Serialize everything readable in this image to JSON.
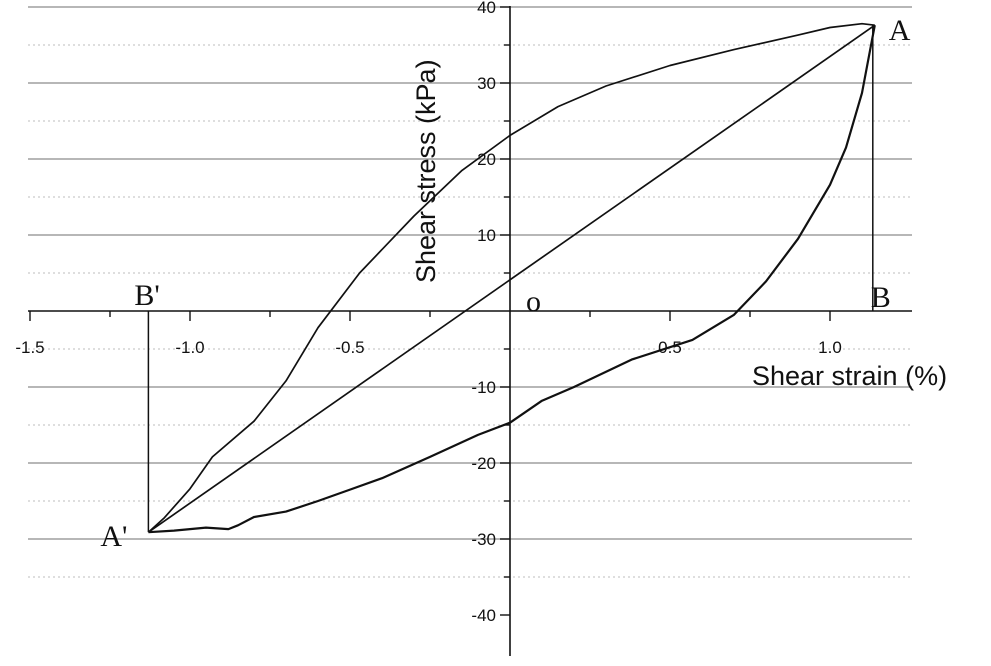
{
  "chart_data": {
    "type": "line",
    "title": "",
    "xlabel": "Shear strain (%)",
    "ylabel": "Shear stress (kPa)",
    "xlim": [
      -1.5,
      1.2
    ],
    "ylim": [
      -40,
      40
    ],
    "x_ticks": [
      -1.5,
      -1.0,
      -0.5,
      0.5,
      1.0
    ],
    "x_tick_labels": [
      "-1.5",
      "-1.0",
      "-0.5",
      "0.5",
      "1.0"
    ],
    "y_ticks": [
      -40,
      -30,
      -20,
      -10,
      10,
      20,
      30,
      40
    ],
    "y_tick_labels": [
      "-40",
      "-30",
      "-20",
      "-10",
      "10",
      "20",
      "30",
      "40"
    ],
    "grid": "horizontal major and minor",
    "series": [
      {
        "values": [
          [
            1.14,
            37.6
          ],
          [
            1.1,
            37.8
          ],
          [
            1.0,
            37.3
          ],
          [
            0.9,
            36.3
          ],
          [
            0.7,
            34.4
          ],
          [
            0.5,
            32.3
          ],
          [
            0.3,
            29.6
          ],
          [
            0.15,
            26.9
          ],
          [
            0.0,
            23.1
          ],
          [
            -0.15,
            18.5
          ],
          [
            -0.3,
            12.5
          ],
          [
            -0.47,
            5.0
          ],
          [
            -0.6,
            -2.2
          ],
          [
            -0.7,
            -9.2
          ],
          [
            -0.8,
            -14.5
          ],
          [
            -0.93,
            -19.2
          ],
          [
            -1.0,
            -23.4
          ],
          [
            -1.08,
            -27.2
          ],
          [
            -1.13,
            -29.1
          ]
        ]
      },
      {
        "values": [
          [
            -1.13,
            -29.1
          ],
          [
            -1.05,
            -28.9
          ],
          [
            -0.95,
            -28.5
          ],
          [
            -0.88,
            -28.7
          ],
          [
            -0.85,
            -28.2
          ],
          [
            -0.8,
            -27.1
          ],
          [
            -0.7,
            -26.4
          ],
          [
            -0.6,
            -25.0
          ],
          [
            -0.5,
            -23.5
          ],
          [
            -0.4,
            -22.0
          ],
          [
            -0.25,
            -19.2
          ],
          [
            -0.1,
            -16.3
          ],
          [
            0.0,
            -14.7
          ],
          [
            0.1,
            -11.8
          ],
          [
            0.2,
            -10.0
          ],
          [
            0.38,
            -6.4
          ],
          [
            0.57,
            -3.8
          ],
          [
            0.7,
            -0.5
          ],
          [
            0.8,
            3.9
          ],
          [
            0.9,
            9.5
          ],
          [
            1.0,
            16.6
          ],
          [
            1.05,
            21.5
          ],
          [
            1.1,
            28.7
          ],
          [
            1.14,
            37.6
          ]
        ]
      },
      {
        "values": [
          [
            -1.13,
            -29.1
          ],
          [
            1.14,
            37.6
          ]
        ]
      }
    ],
    "annotations": [
      {
        "text": "A",
        "x": 1.14,
        "y": 37.6
      },
      {
        "text": "B",
        "x": 1.14,
        "y": 0
      },
      {
        "text": "A'",
        "x": -1.13,
        "y": -29.1
      },
      {
        "text": "B'",
        "x": -1.13,
        "y": 0
      },
      {
        "text": "o",
        "x": 0,
        "y": 0
      }
    ]
  }
}
